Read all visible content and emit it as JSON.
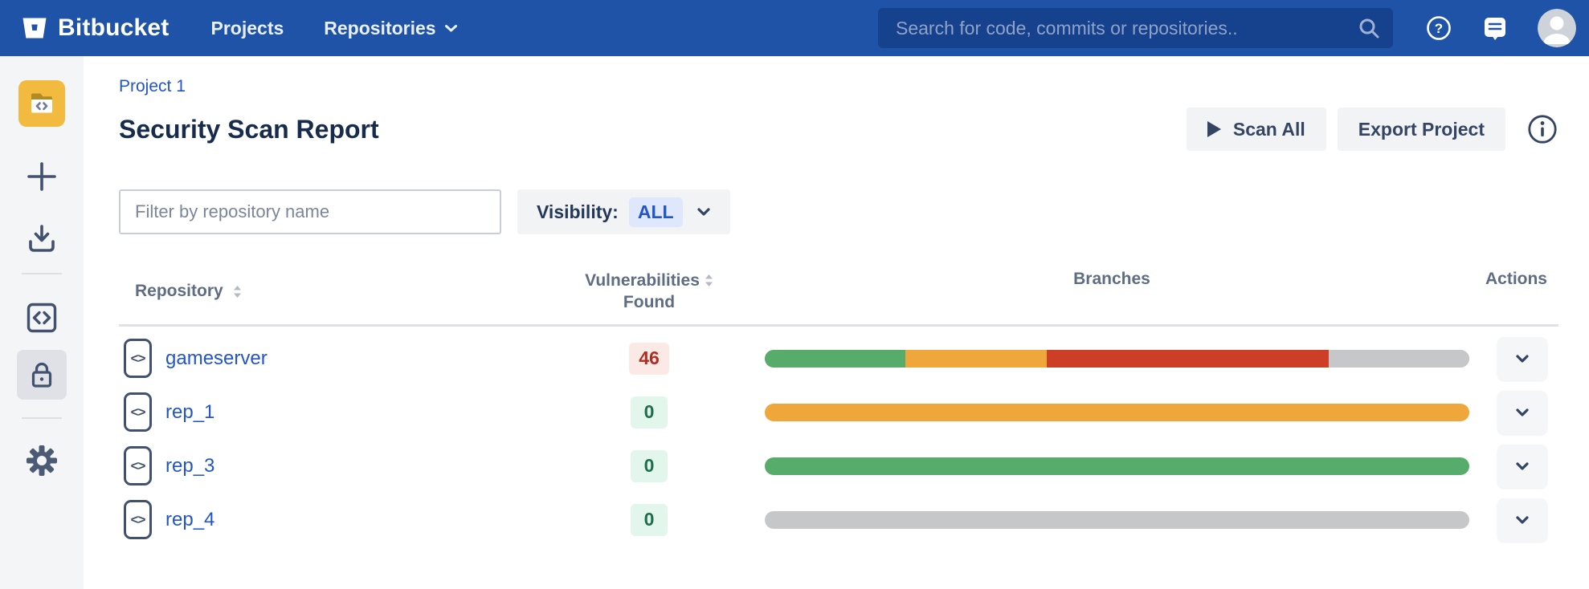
{
  "colors": {
    "navbar_bg": "#1E53A8",
    "navbar_search_bg": "#16418C",
    "sidebar_bg": "#F4F5F7",
    "project_avatar_bg": "#F2BB3F",
    "icon_slate": "#42526E",
    "link_blue": "#2255CC",
    "title_text": "#172B4D",
    "badge_red_bg": "#FBE9E6",
    "badge_red_text": "#AE2E24",
    "badge_green_bg": "#E3F6EC",
    "badge_green_text": "#1F6E4E",
    "branch_green": "#57AC6B",
    "branch_orange": "#EFA63A",
    "branch_red": "#CC3E25",
    "branch_gray": "#C6C7C9"
  },
  "navbar": {
    "brand": "Bitbucket",
    "nav_items": [
      {
        "label": "Projects",
        "dropdown": false
      },
      {
        "label": "Repositories",
        "dropdown": true
      }
    ],
    "search": {
      "placeholder": "Search for code, commits or repositories.."
    },
    "right_icons": [
      "help-icon",
      "feedback-icon",
      "user-avatar"
    ]
  },
  "sidebar": {
    "items": [
      {
        "icon": "project-avatar-folder-code-icon",
        "active": false
      },
      {
        "icon": "plus-icon",
        "active": false
      },
      {
        "icon": "download-icon",
        "active": false
      },
      {
        "icon": "code-brackets-icon",
        "active": false
      },
      {
        "icon": "lock-icon",
        "active": true
      },
      {
        "icon": "gear-icon",
        "active": false
      }
    ]
  },
  "page": {
    "breadcrumb": "Project 1",
    "title": "Security Scan Report",
    "scan_all_label": "Scan All",
    "export_label": "Export Project"
  },
  "filters": {
    "repo_filter_placeholder": "Filter by repository name",
    "visibility_label": "Visibility:",
    "visibility_value": "ALL"
  },
  "table": {
    "headers": {
      "repository": "Repository",
      "vulnerabilities_line1": "Vulnerabilities",
      "vulnerabilities_line2": "Found",
      "branches": "Branches",
      "actions": "Actions"
    },
    "rows": [
      {
        "name": "gameserver",
        "vulnerabilities": "46",
        "badge": "red",
        "segments": [
          {
            "status": "passing",
            "color": "#57AC6B",
            "pct": 20
          },
          {
            "status": "warning",
            "color": "#EFA63A",
            "pct": 20
          },
          {
            "status": "failing",
            "color": "#CC3E25",
            "pct": 40
          },
          {
            "status": "unscanned",
            "color": "#C6C7C9",
            "pct": 20
          }
        ]
      },
      {
        "name": "rep_1",
        "vulnerabilities": "0",
        "badge": "green",
        "segments": [
          {
            "status": "warning",
            "color": "#EFA63A",
            "pct": 100
          }
        ]
      },
      {
        "name": "rep_3",
        "vulnerabilities": "0",
        "badge": "green",
        "segments": [
          {
            "status": "passing",
            "color": "#57AC6B",
            "pct": 100
          }
        ]
      },
      {
        "name": "rep_4",
        "vulnerabilities": "0",
        "badge": "green",
        "segments": [
          {
            "status": "unscanned",
            "color": "#C6C7C9",
            "pct": 100
          }
        ]
      }
    ]
  }
}
